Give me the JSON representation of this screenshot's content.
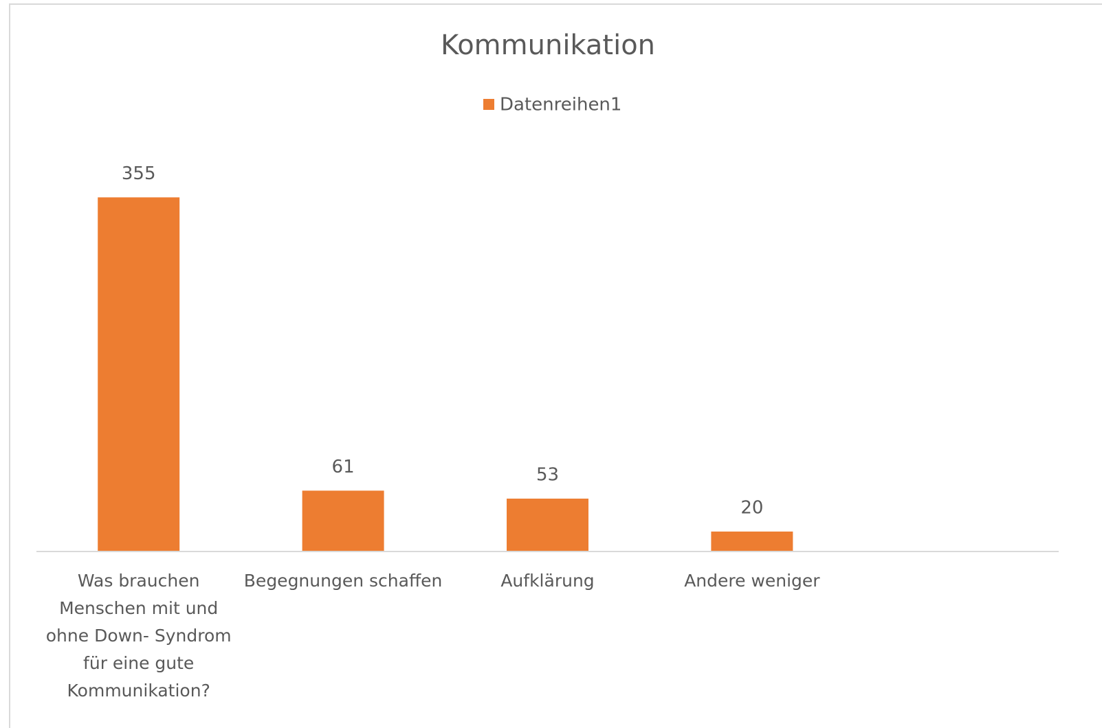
{
  "chart_data": {
    "type": "bar",
    "title": "Kommunikation",
    "categories": [
      "Was brauchen Menschen mit und ohne Down- Syndrom für eine gute Kommunikation?",
      "Begegnungen schaffen",
      "Aufklärung",
      "Andere weniger",
      null
    ],
    "series": [
      {
        "name": "Datenreihen1",
        "color": "#ed7d31",
        "values": [
          355,
          61,
          53,
          20,
          null
        ]
      }
    ],
    "ylim": [
      0,
      400
    ],
    "legend": "top"
  }
}
